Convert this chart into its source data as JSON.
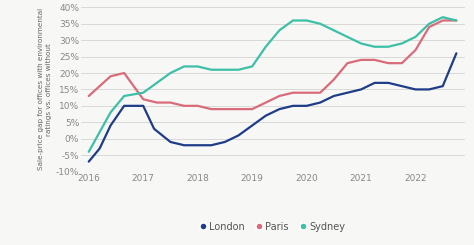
{
  "london_x": [
    2016.0,
    2016.2,
    2016.4,
    2016.65,
    2017.0,
    2017.2,
    2017.5,
    2017.75,
    2018.0,
    2018.25,
    2018.5,
    2018.75,
    2019.0,
    2019.25,
    2019.5,
    2019.75,
    2020.0,
    2020.25,
    2020.5,
    2020.75,
    2021.0,
    2021.25,
    2021.5,
    2021.75,
    2022.0,
    2022.25,
    2022.5,
    2022.75
  ],
  "london_y": [
    -7,
    -3,
    4,
    10,
    10,
    3,
    -1,
    -2,
    -2,
    -2,
    -1,
    1,
    4,
    7,
    9,
    10,
    10,
    11,
    13,
    14,
    15,
    17,
    17,
    16,
    15,
    15,
    16,
    26
  ],
  "paris_x": [
    2016.0,
    2016.2,
    2016.4,
    2016.65,
    2017.0,
    2017.25,
    2017.5,
    2017.75,
    2018.0,
    2018.25,
    2018.5,
    2018.75,
    2019.0,
    2019.25,
    2019.5,
    2019.75,
    2020.0,
    2020.25,
    2020.5,
    2020.75,
    2021.0,
    2021.25,
    2021.5,
    2021.75,
    2022.0,
    2022.25,
    2022.5,
    2022.75
  ],
  "paris_y": [
    13,
    16,
    19,
    20,
    12,
    11,
    11,
    10,
    10,
    9,
    9,
    9,
    9,
    11,
    13,
    14,
    14,
    14,
    18,
    23,
    24,
    24,
    23,
    23,
    27,
    34,
    36,
    36
  ],
  "sydney_x": [
    2016.0,
    2016.2,
    2016.4,
    2016.65,
    2017.0,
    2017.25,
    2017.5,
    2017.75,
    2018.0,
    2018.25,
    2018.5,
    2018.75,
    2019.0,
    2019.25,
    2019.5,
    2019.75,
    2020.0,
    2020.25,
    2020.5,
    2020.75,
    2021.0,
    2021.25,
    2021.5,
    2021.75,
    2022.0,
    2022.25,
    2022.5,
    2022.75
  ],
  "sydney_y": [
    -4,
    2,
    8,
    13,
    14,
    17,
    20,
    22,
    22,
    21,
    21,
    21,
    22,
    28,
    33,
    36,
    36,
    35,
    33,
    31,
    29,
    28,
    28,
    29,
    31,
    35,
    37,
    36
  ],
  "london_color": "#1f3c88",
  "paris_color": "#d96b7a",
  "sydney_color": "#3dbfa8",
  "ylabel": "Sale-price gap for offices with environmental\nratings vs. offices without",
  "ylim": [
    -10,
    40
  ],
  "xlim": [
    2015.85,
    2022.9
  ],
  "yticks": [
    -10,
    -5,
    0,
    5,
    10,
    15,
    20,
    25,
    30,
    35,
    40
  ],
  "xticks": [
    2016,
    2017,
    2018,
    2019,
    2020,
    2021,
    2022
  ],
  "legend_labels": [
    "London",
    "Paris",
    "Sydney"
  ],
  "background_color": "#f7f7f5",
  "grid_color": "#cccccc",
  "line_width": 1.6
}
